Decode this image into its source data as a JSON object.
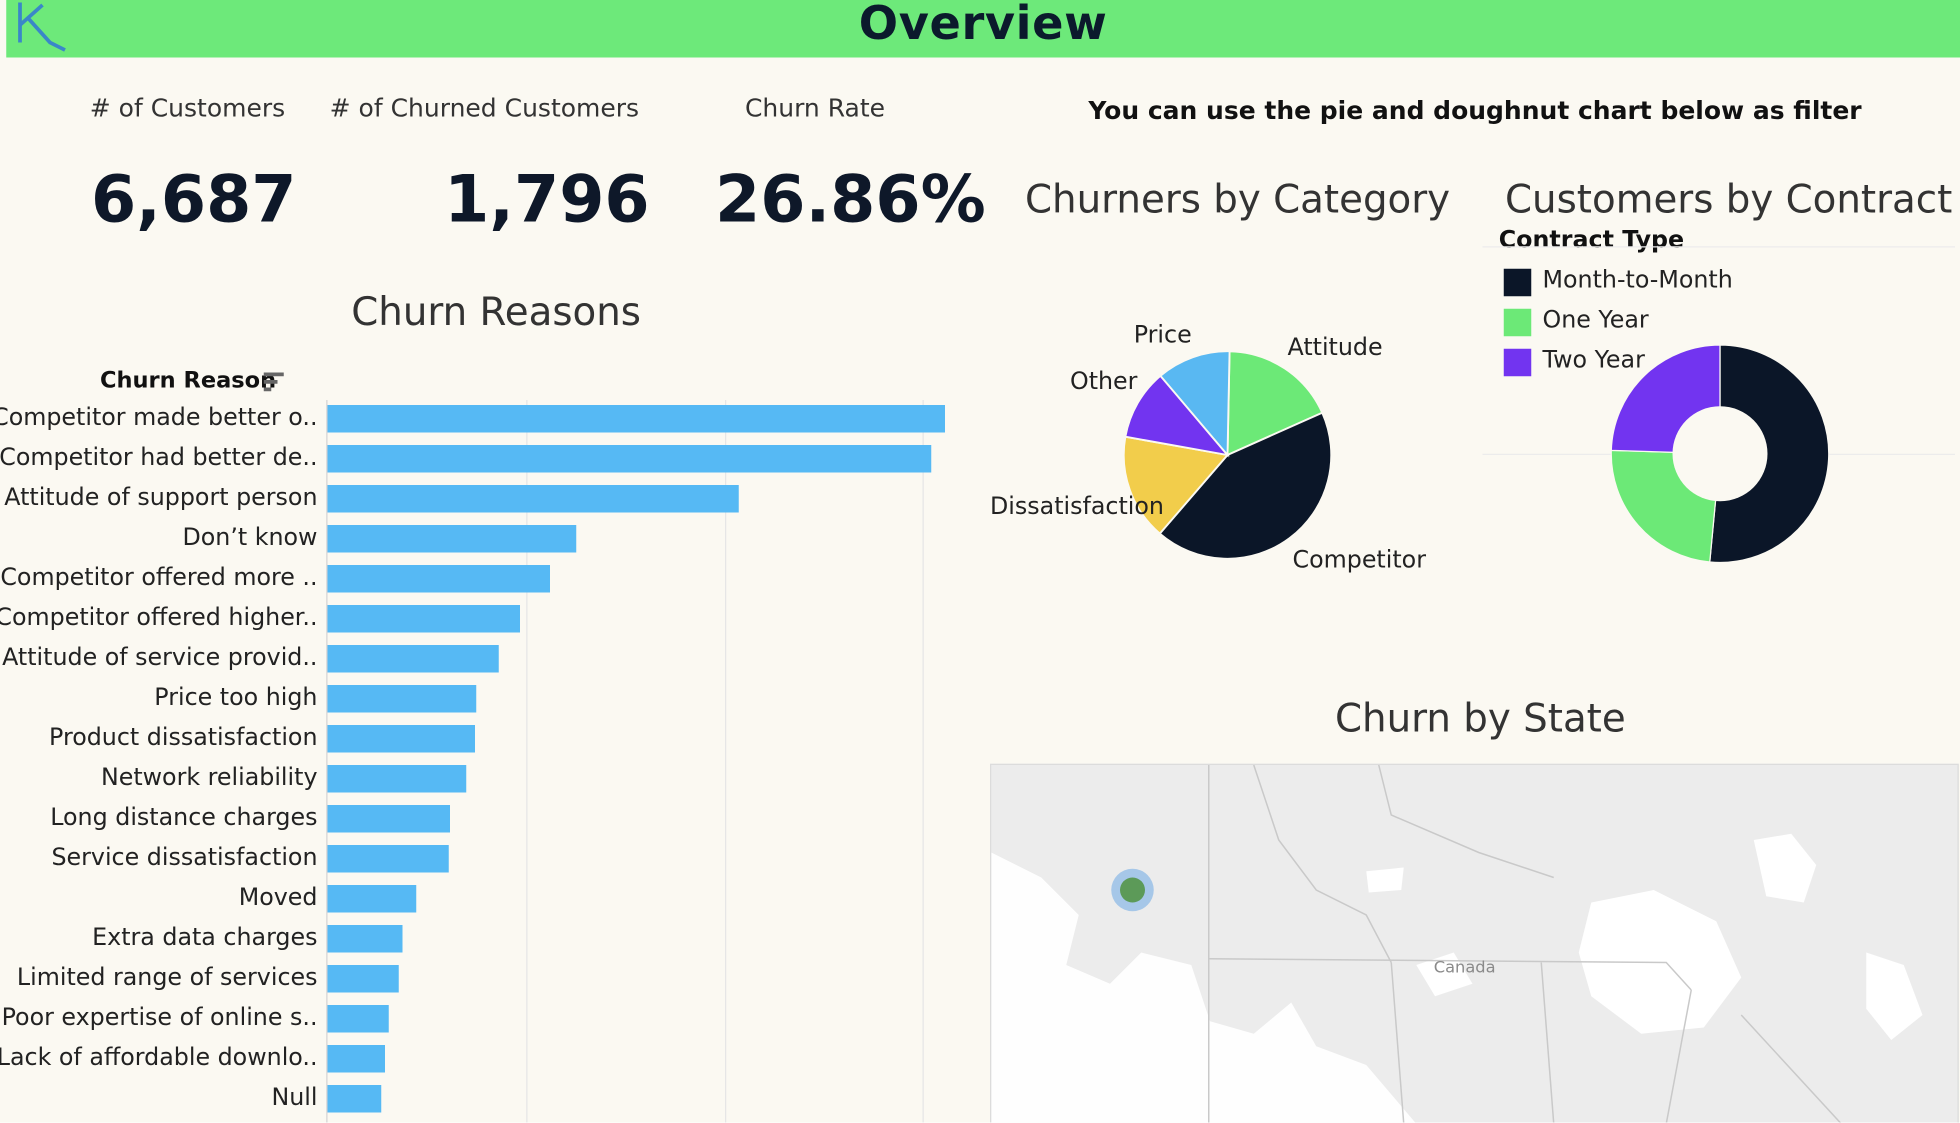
{
  "header": {
    "title": "Overview",
    "logo_icon": "logo-icon"
  },
  "kpis": [
    {
      "label": "# of Customers",
      "value": "6,687"
    },
    {
      "label": "# of Churned Customers",
      "value": "1,796"
    },
    {
      "label": "Churn Rate",
      "value": "26.86%"
    }
  ],
  "filter_note": "You can use the pie and doughnut chart below as filter",
  "churn_reasons": {
    "title": "Churn Reasons",
    "field_header": "Churn Reason",
    "sort_icon": "sort-icon"
  },
  "category_chart": {
    "title": "Churners by Category"
  },
  "contract_chart": {
    "title": "Customers by Contract",
    "legend_title": "Contract Type"
  },
  "map": {
    "title": "Churn by State",
    "country_label": "Canada"
  },
  "colors": {
    "header": "#6de97a",
    "bar": "#56b9f4",
    "navy": "#0b1628",
    "green": "#6ce977",
    "purple": "#7234f0",
    "yellow": "#f2cd4b",
    "sky": "#59b8f2"
  },
  "chart_data": [
    {
      "type": "bar",
      "orientation": "horizontal",
      "title": "Churn Reasons",
      "categories": [
        "Competitor made better o..",
        "Competitor had better de..",
        "Attitude of support person",
        "Don’t know",
        "Competitor offered more ..",
        "Competitor offered higher..",
        "Attitude of service provid..",
        "Price too high",
        "Product dissatisfaction",
        "Network reliability",
        "Long distance charges",
        "Service dissatisfaction",
        "Moved",
        "Extra data charges",
        "Limited range of services",
        "Poor expertise of online s..",
        "Lack of affordable downlo..",
        "Null"
      ],
      "values": [
        311,
        304,
        207,
        125,
        112,
        97,
        86,
        75,
        74,
        70,
        62,
        61,
        45,
        38,
        36,
        31,
        29,
        27
      ],
      "xlim": [
        0,
        340
      ],
      "grid": true
    },
    {
      "type": "pie",
      "title": "Churners by Category",
      "slices": [
        {
          "label": "Competitor",
          "value": 43.0,
          "color": "#0b1628"
        },
        {
          "label": "Dissatisfaction",
          "value": 16.5,
          "color": "#f2cd4b"
        },
        {
          "label": "Other",
          "value": 11.0,
          "color": "#7234f0"
        },
        {
          "label": "Price",
          "value": 11.5,
          "color": "#59b8f2"
        },
        {
          "label": "Attitude",
          "value": 18.0,
          "color": "#6ce977"
        }
      ]
    },
    {
      "type": "pie",
      "subtype": "doughnut",
      "title": "Customers by Contract",
      "legend_title": "Contract Type",
      "slices": [
        {
          "label": "Month-to-Month",
          "value": 51.5,
          "color": "#0b1628"
        },
        {
          "label": "One Year",
          "value": 24.0,
          "color": "#6ce977"
        },
        {
          "label": "Two Year",
          "value": 24.5,
          "color": "#7234f0"
        }
      ]
    }
  ]
}
